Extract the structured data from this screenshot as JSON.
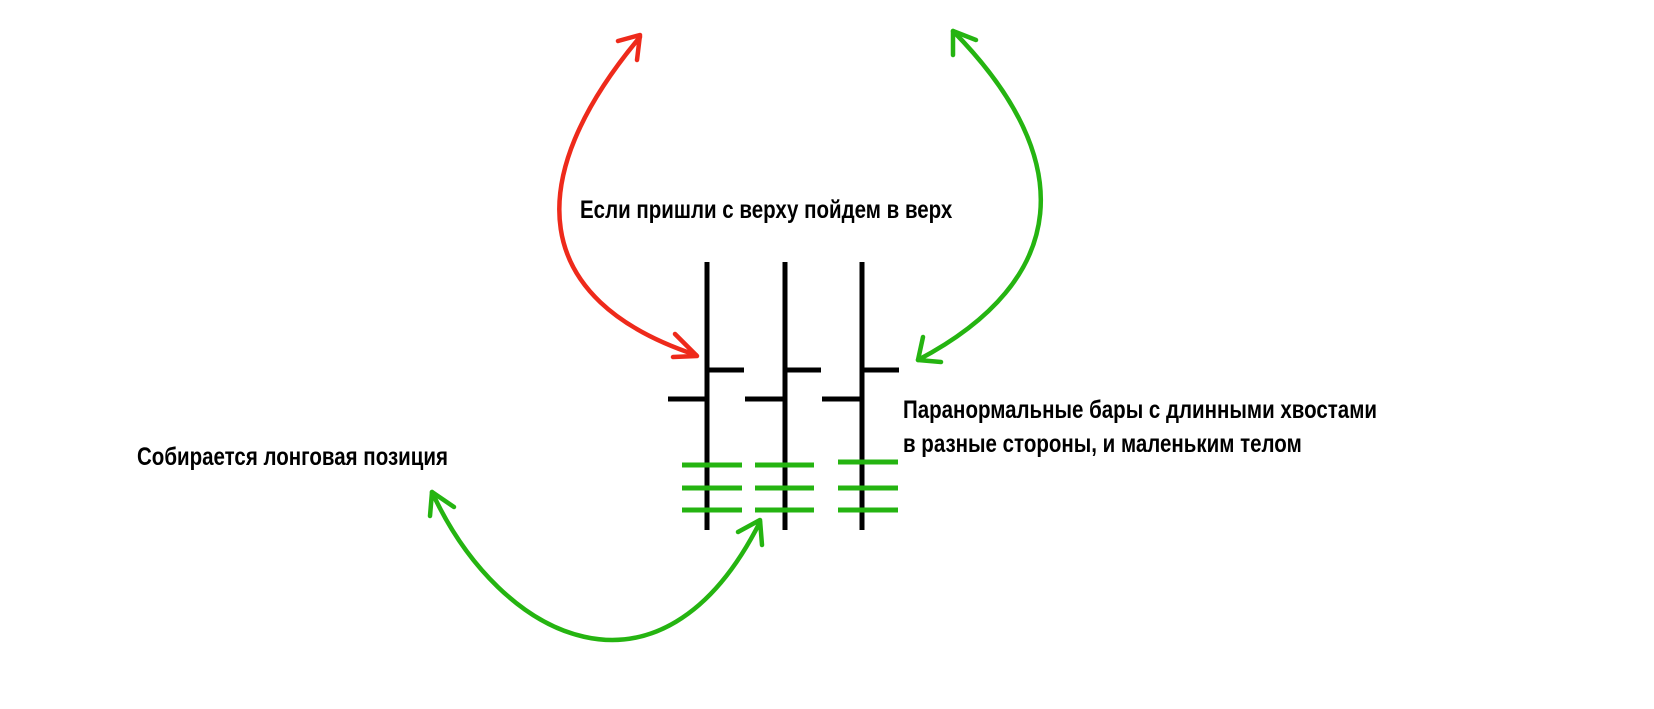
{
  "labels": {
    "top": "Если пришли с верху пойдем в верх",
    "right_line1": "Паранормальные бары с длинными хвостами",
    "right_line2": "в разные стороны, и маленьким телом",
    "left": "Собирается лонговая позиция"
  },
  "colors": {
    "bars": "#000000",
    "arrow_red": "#ee2a1b",
    "arrow_green": "#25b411",
    "accumulation_levels": "#25b411",
    "text": "#000000"
  },
  "bars": [
    {
      "name": "bar-1",
      "accumulation_levels": 3
    },
    {
      "name": "bar-2",
      "accumulation_levels": 3
    },
    {
      "name": "bar-3",
      "accumulation_levels": 3
    }
  ],
  "arrows": [
    {
      "name": "red-arrow",
      "color": "red",
      "direction": "two-way"
    },
    {
      "name": "green-arrow-top",
      "color": "green",
      "direction": "two-way"
    },
    {
      "name": "green-arrow-bottom",
      "color": "green",
      "direction": "two-way"
    }
  ]
}
